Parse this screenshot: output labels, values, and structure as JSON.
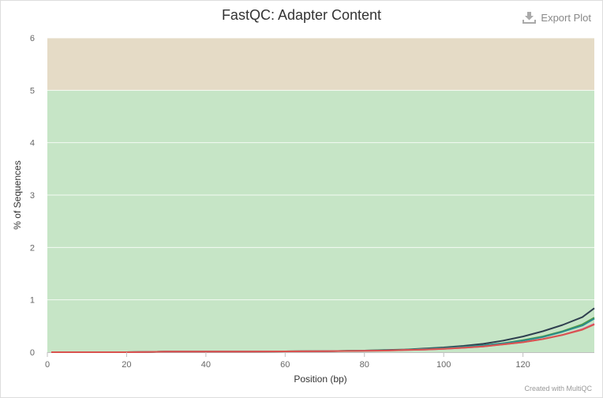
{
  "header": {
    "title": "FastQC: Adapter Content",
    "export_label": "Export Plot"
  },
  "footer": {
    "credits": "Created with MultiQC"
  },
  "chart_data": {
    "type": "line",
    "title": "FastQC: Adapter Content",
    "xlabel": "Position (bp)",
    "ylabel": "% of Sequences",
    "xlim": [
      0,
      138
    ],
    "ylim": [
      0,
      6
    ],
    "x_ticks": [
      0,
      20,
      40,
      60,
      80,
      100,
      120
    ],
    "y_ticks": [
      0,
      1,
      2,
      3,
      4,
      5,
      6
    ],
    "grid": true,
    "bands": [
      {
        "from": 0,
        "to": 5,
        "color": "#c6e5c6"
      },
      {
        "from": 5,
        "to": 6,
        "color": "#e5dbc6"
      }
    ],
    "x": [
      1,
      10,
      20,
      25,
      30,
      40,
      50,
      60,
      70,
      80,
      85,
      90,
      95,
      100,
      105,
      110,
      115,
      120,
      125,
      130,
      135,
      138
    ],
    "series": [
      {
        "color": "#2f3f4f",
        "values": [
          0,
          0,
          0,
          0.005,
          0.01,
          0.01,
          0.01,
          0.015,
          0.02,
          0.03,
          0.04,
          0.05,
          0.07,
          0.09,
          0.12,
          0.16,
          0.22,
          0.3,
          0.4,
          0.52,
          0.67,
          0.84
        ]
      },
      {
        "color": "#4e9a3e",
        "values": [
          0,
          0,
          0,
          0.005,
          0.01,
          0.01,
          0.01,
          0.015,
          0.02,
          0.03,
          0.035,
          0.045,
          0.06,
          0.075,
          0.1,
          0.13,
          0.17,
          0.23,
          0.3,
          0.4,
          0.53,
          0.66
        ]
      },
      {
        "color": "#2b8c8c",
        "values": [
          0,
          0,
          0,
          0.005,
          0.01,
          0.01,
          0.01,
          0.015,
          0.02,
          0.03,
          0.035,
          0.045,
          0.06,
          0.075,
          0.1,
          0.13,
          0.17,
          0.22,
          0.29,
          0.39,
          0.51,
          0.64
        ]
      },
      {
        "color": "#e05a9a",
        "values": [
          0,
          0,
          0,
          0.005,
          0.01,
          0.01,
          0.01,
          0.015,
          0.02,
          0.025,
          0.03,
          0.04,
          0.05,
          0.065,
          0.085,
          0.11,
          0.15,
          0.19,
          0.25,
          0.33,
          0.44,
          0.54
        ]
      },
      {
        "color": "#d9534f",
        "values": [
          0,
          0,
          0,
          0.005,
          0.01,
          0.01,
          0.01,
          0.015,
          0.02,
          0.025,
          0.03,
          0.04,
          0.05,
          0.065,
          0.085,
          0.11,
          0.15,
          0.19,
          0.25,
          0.33,
          0.43,
          0.53
        ]
      }
    ]
  }
}
